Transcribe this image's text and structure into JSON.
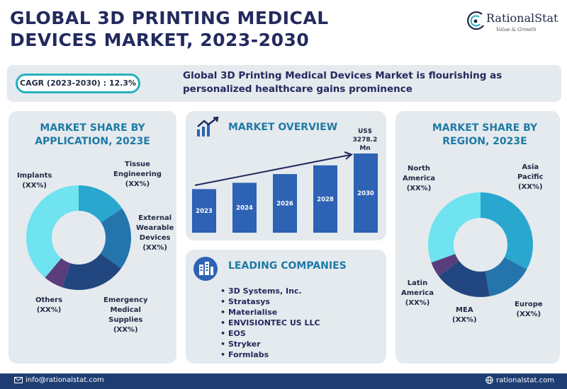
{
  "header": {
    "title_line1": "Global 3D Printing Medical",
    "title_line2": "Devices Market, 2023-2030",
    "logo_name": "RationalStat",
    "logo_tagline": "Value & Growth"
  },
  "banner": {
    "cagr": "CAGR (2023-2030) : 12.3%",
    "headline": "Global 3D Printing Medical Devices Market is flourishing as personalized healthcare gains prominence"
  },
  "application_panel": {
    "title_line1": "MARKET SHARE BY",
    "title_line2": "APPLICATION, 2023E",
    "segments": [
      {
        "name_lines": [
          "Implants"
        ],
        "value": "(XX%)",
        "color": "#6fe3ef"
      },
      {
        "name_lines": [
          "Tissue",
          "Engineering"
        ],
        "value": "(XX%)",
        "color": "#2aa7cf"
      },
      {
        "name_lines": [
          "External",
          "Wearable",
          "Devices"
        ],
        "value": "(XX%)",
        "color": "#2475ac"
      },
      {
        "name_lines": [
          "Emergency",
          "Medical",
          "Supplies"
        ],
        "value": "(XX%)",
        "color": "#22467f"
      },
      {
        "name_lines": [
          "Others"
        ],
        "value": "(XX%)",
        "color": "#5a3d7c"
      }
    ]
  },
  "overview_panel": {
    "title": "MARKET OVERVIEW",
    "value_label": "US$ 3278.2 Mn",
    "bar_color": "#2d62b4",
    "bars": [
      {
        "year": "2023",
        "relative_height": 0.55
      },
      {
        "year": "2024",
        "relative_height": 0.63
      },
      {
        "year": "2026",
        "relative_height": 0.74
      },
      {
        "year": "2028",
        "relative_height": 0.85
      },
      {
        "year": "2030",
        "relative_height": 1.0
      }
    ]
  },
  "companies_panel": {
    "title": "LEADING COMPANIES",
    "items": [
      "3D Systems, Inc.",
      "Stratasys",
      "Materialise",
      "ENVISIONTEC US LLC",
      "EOS",
      "Stryker",
      "Formlabs"
    ]
  },
  "region_panel": {
    "title_line1": "MARKET SHARE BY",
    "title_line2": "REGION, 2023E",
    "segments": [
      {
        "name_lines": [
          "Asia",
          "Pacific"
        ],
        "value": "(XX%)",
        "color": "#2aa7cf"
      },
      {
        "name_lines": [
          "Europe"
        ],
        "value": "(XX%)",
        "color": "#2475ac"
      },
      {
        "name_lines": [
          "MEA"
        ],
        "value": "(XX%)",
        "color": "#22467f"
      },
      {
        "name_lines": [
          "Latin",
          "America"
        ],
        "value": "(XX%)",
        "color": "#5a3d7c"
      },
      {
        "name_lines": [
          "North",
          "America"
        ],
        "value": "(XX%)",
        "color": "#6fe3ef"
      }
    ]
  },
  "footer": {
    "email": "info@rationalstat.com",
    "website": "rationalstat.com"
  }
}
